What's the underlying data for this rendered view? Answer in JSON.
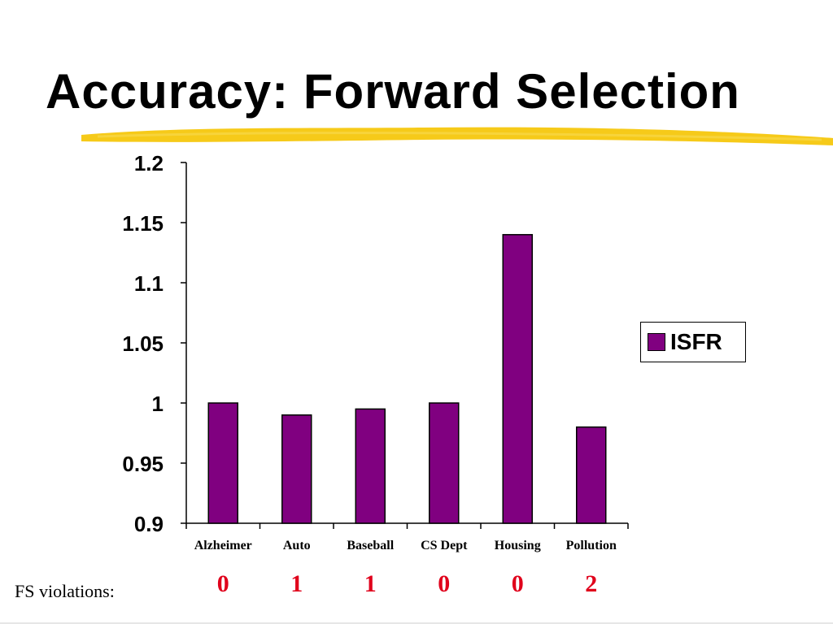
{
  "slide": {
    "title": "Accuracy: Forward Selection",
    "fs_label": "FS violations:",
    "fs_violations": [
      "0",
      "1",
      "1",
      "0",
      "0",
      "2"
    ],
    "fs_color": "#e0001b",
    "underline_color": "#f5c400"
  },
  "chart_data": {
    "type": "bar",
    "title": "",
    "xlabel": "",
    "ylabel": "",
    "categories": [
      "Alzheimer",
      "Auto",
      "Baseball",
      "CS Dept",
      "Housing",
      "Pollution"
    ],
    "series": [
      {
        "name": "ISFR",
        "values": [
          1.0,
          0.99,
          0.995,
          1.0,
          1.14,
          0.98
        ],
        "color": "#800080"
      }
    ],
    "ylim": [
      0.9,
      1.2
    ],
    "yticks": [
      "0.9",
      "0.95",
      "1",
      "1.05",
      "1.1",
      "1.15",
      "1.2"
    ],
    "grid": false,
    "legend": "right"
  }
}
